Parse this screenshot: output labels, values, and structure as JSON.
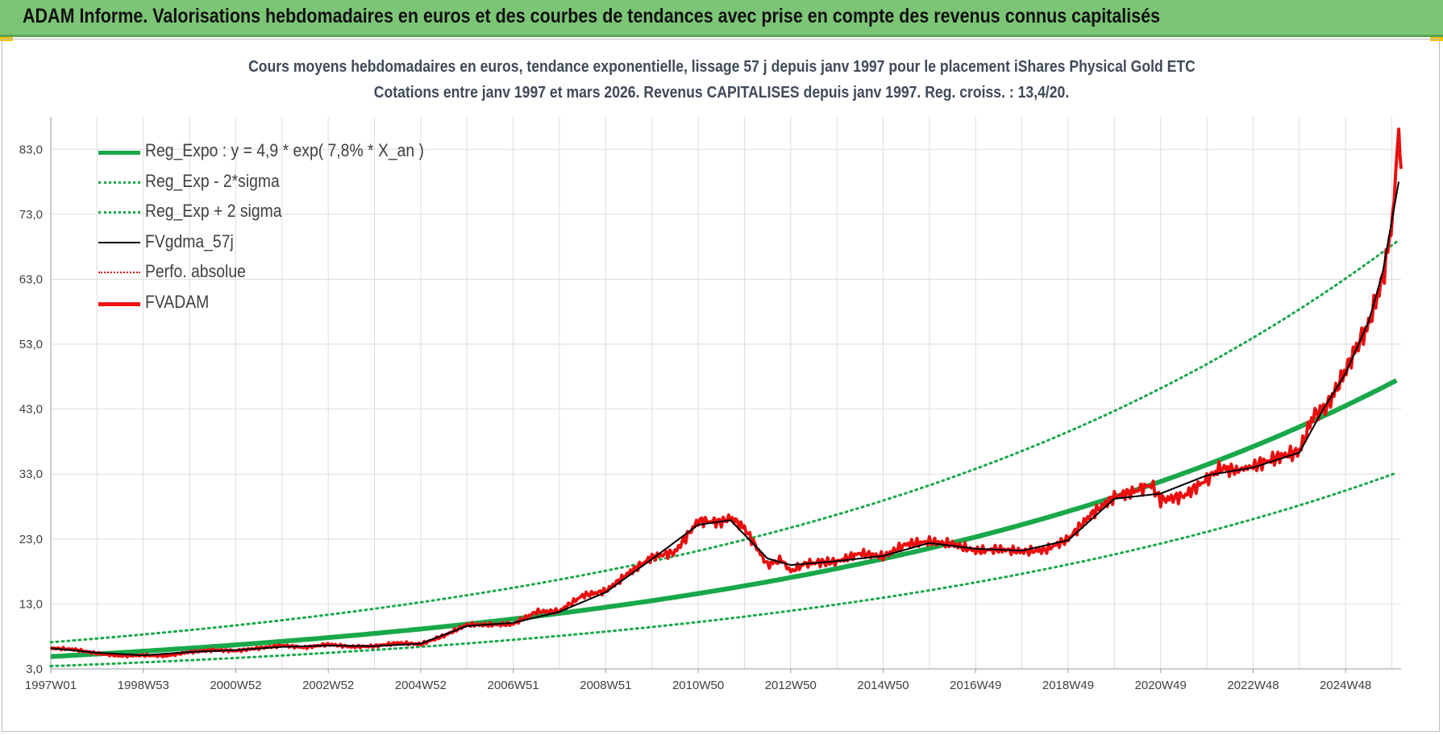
{
  "banner": {
    "title": "ADAM Informe. Valorisations hebdomadaires en euros et des courbes de tendances avec prise en compte des revenus connus capitalisés"
  },
  "colors": {
    "banner_bg": "#7cc576",
    "trend": "#19a84a",
    "trend_band": "#19a84a",
    "smooth": "#000000",
    "perf": "#d40000",
    "price": "#ee1111",
    "grid": "#dcdcdc"
  },
  "chart_data": {
    "type": "line",
    "title": "Cours moyens hebdomadaires en euros, tendance exponentielle, lissage 57 j depuis janv 1997 pour le placement iShares Physical Gold ETC",
    "subtitle": "Cotations entre janv 1997 et mars 2026. Revenus CAPITALISES depuis janv 1997. Reg. croiss. : 13,4/20.",
    "xlabel": "",
    "ylabel": "",
    "xlim": [
      1997.0,
      2026.2
    ],
    "ylim": [
      3.0,
      88.0
    ],
    "grid": true,
    "legend_position": "top-left",
    "x_tick_labels": [
      "1997W01",
      "1998W53",
      "2000W52",
      "2002W52",
      "2004W52",
      "2006W51",
      "2008W51",
      "2010W50",
      "2012W50",
      "2014W50",
      "2016W49",
      "2018W49",
      "2020W49",
      "2022W48",
      "2024W48"
    ],
    "x_tick_positions": [
      1997.0,
      1999.0,
      2001.0,
      2003.0,
      2005.0,
      2007.0,
      2009.0,
      2011.0,
      2013.0,
      2015.0,
      2017.0,
      2019.0,
      2021.0,
      2023.0,
      2025.0
    ],
    "y_tick_labels": [
      "3,0",
      "13,0",
      "23,0",
      "33,0",
      "43,0",
      "53,0",
      "63,0",
      "73,0",
      "83,0"
    ],
    "y_tick_values": [
      3,
      13,
      23,
      33,
      43,
      53,
      63,
      73,
      83
    ],
    "trend": {
      "a": 4.9,
      "rate": 0.078,
      "x0": 1997.0,
      "band_low_factor": 0.7,
      "band_high_factor": 1.45
    },
    "legend": [
      {
        "label": "Reg_Expo : y = 4,9 * exp( 7,8% *  X_an )",
        "style": "solid-thick",
        "color": "#19a84a"
      },
      {
        "label": "Reg_Exp - 2*sigma",
        "style": "dotted",
        "color": "#19a84a"
      },
      {
        "label": "Reg_Exp + 2 sigma",
        "style": "dotted",
        "color": "#19a84a"
      },
      {
        "label": "FVgdma_57j",
        "style": "solid",
        "color": "#000000"
      },
      {
        "label": "Perfo. absolue",
        "style": "dotted",
        "color": "#d40000"
      },
      {
        "label": "FVADAM",
        "style": "solid-thick",
        "color": "#ee1111"
      }
    ],
    "series": [
      {
        "name": "FVADAM",
        "x": [
          1997.0,
          1997.5,
          1998.0,
          1998.5,
          1999.0,
          1999.5,
          2000.0,
          2000.5,
          2001.0,
          2001.5,
          2002.0,
          2002.5,
          2003.0,
          2003.5,
          2004.0,
          2004.5,
          2005.0,
          2005.5,
          2006.0,
          2006.5,
          2007.0,
          2007.5,
          2008.0,
          2008.5,
          2009.0,
          2009.5,
          2010.0,
          2010.5,
          2011.0,
          2011.5,
          2011.7,
          2012.0,
          2012.5,
          2012.8,
          2013.0,
          2013.3,
          2013.6,
          2014.0,
          2014.5,
          2015.0,
          2015.5,
          2016.0,
          2016.5,
          2017.0,
          2017.5,
          2018.0,
          2018.5,
          2019.0,
          2019.5,
          2020.0,
          2020.5,
          2020.8,
          2021.0,
          2021.5,
          2022.0,
          2022.3,
          2022.6,
          2023.0,
          2023.5,
          2024.0,
          2024.3,
          2024.6,
          2024.9,
          2025.2,
          2025.5,
          2025.8,
          2025.95,
          2026.05,
          2026.15,
          2026.2
        ],
        "values": [
          6.2,
          6.0,
          5.4,
          5.0,
          5.1,
          5.0,
          5.6,
          5.9,
          5.8,
          6.2,
          6.6,
          6.3,
          6.8,
          6.4,
          6.5,
          7.0,
          6.8,
          8.1,
          9.8,
          9.8,
          9.9,
          11.8,
          11.9,
          14.3,
          15.0,
          17.8,
          20.2,
          21.0,
          25.8,
          25.6,
          26.3,
          24.7,
          19.0,
          19.8,
          18.0,
          19.2,
          19.4,
          19.5,
          20.8,
          20.3,
          22.2,
          22.6,
          22.2,
          21.2,
          21.4,
          21.1,
          21.3,
          23.0,
          26.8,
          29.5,
          30.5,
          31.4,
          29.0,
          29.6,
          32.2,
          34.0,
          33.5,
          34.2,
          35.5,
          36.5,
          42.0,
          43.4,
          47.5,
          52.0,
          56.0,
          63.0,
          69.0,
          76.0,
          85.0,
          80.0
        ]
      },
      {
        "name": "FVgdma_57j",
        "x": [
          1997.0,
          1998.0,
          1999.0,
          2000.0,
          2001.0,
          2002.0,
          2003.0,
          2004.0,
          2005.0,
          2006.0,
          2007.0,
          2008.0,
          2009.0,
          2010.0,
          2011.0,
          2011.7,
          2012.5,
          2013.0,
          2014.0,
          2015.0,
          2016.0,
          2017.0,
          2018.0,
          2019.0,
          2020.0,
          2021.0,
          2022.0,
          2023.0,
          2024.0,
          2024.5,
          2025.0,
          2025.5,
          2025.8,
          2026.0,
          2026.15
        ],
        "values": [
          6.2,
          5.5,
          5.1,
          5.6,
          5.9,
          6.4,
          6.6,
          6.5,
          6.9,
          9.6,
          10.1,
          11.8,
          14.8,
          19.9,
          25.2,
          25.9,
          20.0,
          19.0,
          19.6,
          20.4,
          22.4,
          21.5,
          21.2,
          22.8,
          29.2,
          30.0,
          32.8,
          34.0,
          36.3,
          42.8,
          48.5,
          56.5,
          64.0,
          72.0,
          78.0
        ]
      }
    ]
  }
}
